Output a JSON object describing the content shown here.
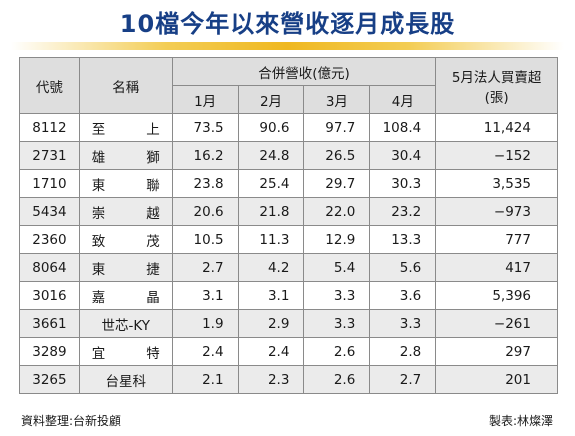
{
  "title": "10檔今年以來營收逐月成長股",
  "header": {
    "code": "代號",
    "name": "名稱",
    "revenue_group": "合併營收(億元)",
    "months": [
      "1月",
      "2月",
      "3月",
      "4月"
    ],
    "net_buy_line1": "5月法人買賣超",
    "net_buy_line2": "(張)"
  },
  "rows": [
    {
      "code": "8112",
      "name": "至上",
      "m1": "73.5",
      "m2": "90.6",
      "m3": "97.7",
      "m4": "108.4",
      "net": "11,424"
    },
    {
      "code": "2731",
      "name": "雄獅",
      "m1": "16.2",
      "m2": "24.8",
      "m3": "26.5",
      "m4": "30.4",
      "net": "−152"
    },
    {
      "code": "1710",
      "name": "東聯",
      "m1": "23.8",
      "m2": "25.4",
      "m3": "29.7",
      "m4": "30.3",
      "net": "3,535"
    },
    {
      "code": "5434",
      "name": "崇越",
      "m1": "20.6",
      "m2": "21.8",
      "m3": "22.0",
      "m4": "23.2",
      "net": "−973"
    },
    {
      "code": "2360",
      "name": "致茂",
      "m1": "10.5",
      "m2": "11.3",
      "m3": "12.9",
      "m4": "13.3",
      "net": "777"
    },
    {
      "code": "8064",
      "name": "東捷",
      "m1": "2.7",
      "m2": "4.2",
      "m3": "5.4",
      "m4": "5.6",
      "net": "417"
    },
    {
      "code": "3016",
      "name": "嘉晶",
      "m1": "3.1",
      "m2": "3.1",
      "m3": "3.3",
      "m4": "3.6",
      "net": "5,396"
    },
    {
      "code": "3661",
      "name": "世芯-KY",
      "m1": "1.9",
      "m2": "2.9",
      "m3": "3.3",
      "m4": "3.3",
      "net": "−261"
    },
    {
      "code": "3289",
      "name": "宜特",
      "m1": "2.4",
      "m2": "2.4",
      "m3": "2.6",
      "m4": "2.8",
      "net": "297"
    },
    {
      "code": "3265",
      "name": "台星科",
      "m1": "2.1",
      "m2": "2.3",
      "m3": "2.6",
      "m4": "2.7",
      "net": "201"
    }
  ],
  "footer": {
    "source": "資料整理:台新投顧",
    "credit": "製表:林燦澤"
  }
}
